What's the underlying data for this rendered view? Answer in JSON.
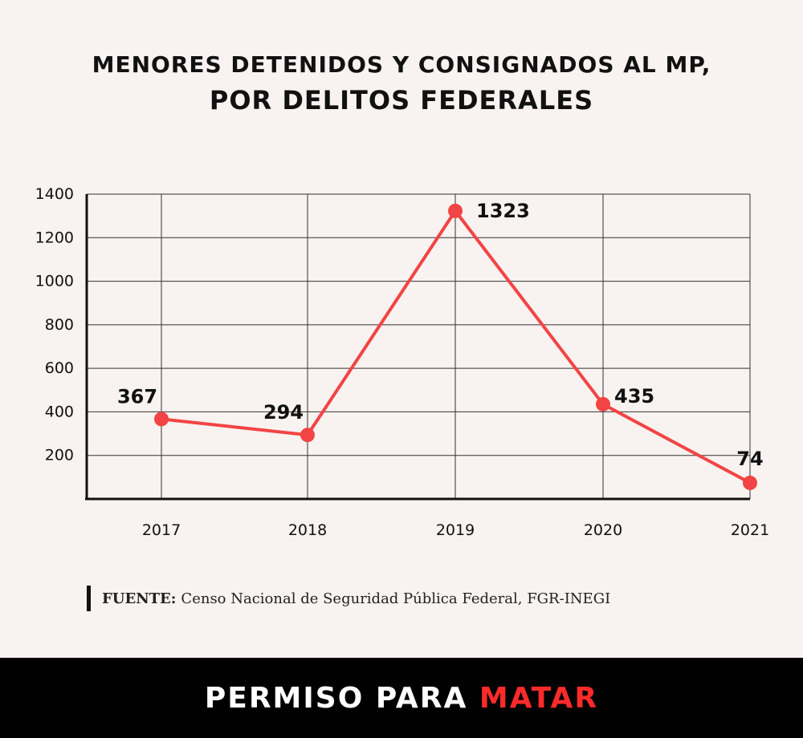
{
  "header": {
    "title_line1": "MENORES DETENIDOS Y CONSIGNADOS AL MP,",
    "title_line2": "POR DELITOS FEDERALES"
  },
  "source": {
    "label": "FUENTE:",
    "text": "Censo Nacional de Seguridad Pública Federal, FGR-INEGI"
  },
  "footer": {
    "part1": "PERMISO PARA",
    "part2": "MATAR"
  },
  "colors": {
    "background": "#f8f2f0",
    "series": "#f24444",
    "footer_bg": "#000000",
    "footer_accent": "#ff2b2b"
  },
  "chart_data": {
    "type": "line",
    "title": "MENORES DETENIDOS Y CONSIGNADOS AL MP, POR DELITOS FEDERALES",
    "categories": [
      "2017",
      "2018",
      "2019",
      "2020",
      "2021"
    ],
    "values": [
      367,
      294,
      1323,
      435,
      74
    ],
    "data_labels": [
      "367",
      "294",
      "1323",
      "435",
      "74"
    ],
    "y_ticks": [
      200,
      400,
      600,
      800,
      1000,
      1200,
      1400
    ],
    "ylim": [
      0,
      1400
    ],
    "grid": true,
    "xlabel": "",
    "ylabel": ""
  }
}
